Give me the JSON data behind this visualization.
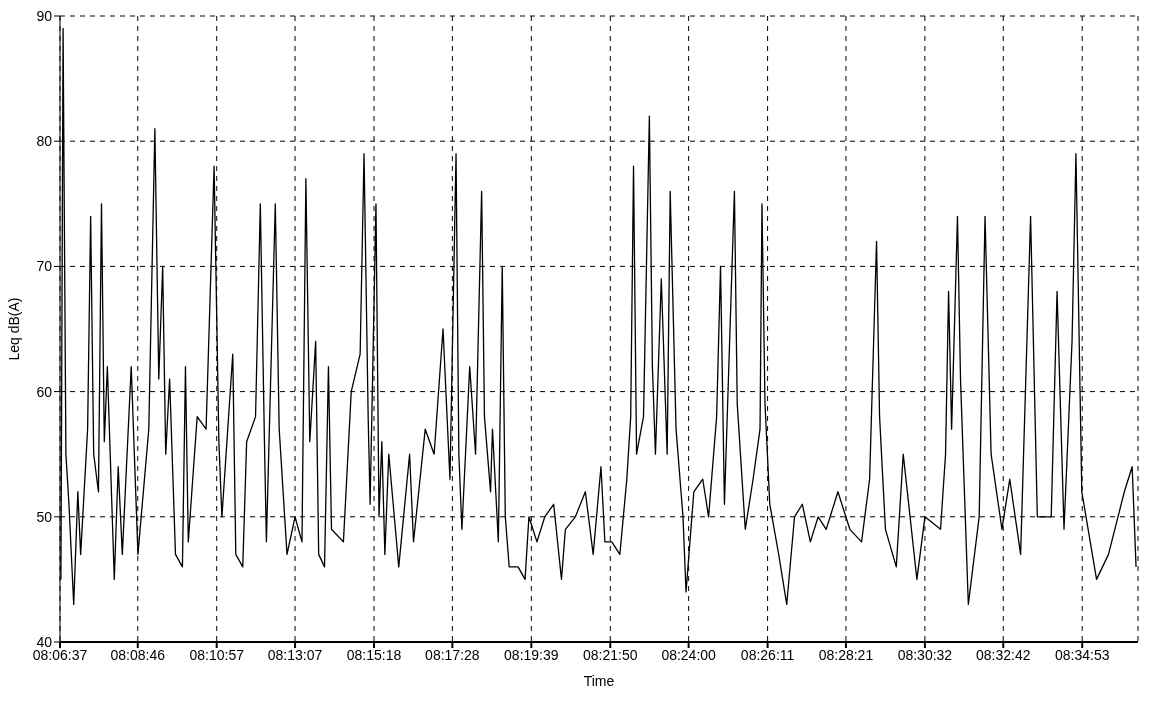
{
  "chart_data": {
    "type": "line",
    "xlabel": "Time",
    "ylabel": "Leq dB(A)",
    "xlim": [
      8.110278,
      8.6071
    ],
    "ylim": [
      40,
      90
    ],
    "xticks": [
      {
        "value": 8.110278,
        "label": "08:06:37"
      },
      {
        "value": 8.146111,
        "label": "08:08:46"
      },
      {
        "value": 8.1825,
        "label": "08:10:57"
      },
      {
        "value": 8.218611,
        "label": "08:13:07"
      },
      {
        "value": 8.255,
        "label": "08:15:18"
      },
      {
        "value": 8.291111,
        "label": "08:17:28"
      },
      {
        "value": 8.3275,
        "label": "08:19:39"
      },
      {
        "value": 8.363889,
        "label": "08:21:50"
      },
      {
        "value": 8.4,
        "label": "08:24:00"
      },
      {
        "value": 8.436389,
        "label": "08:26:11"
      },
      {
        "value": 8.4725,
        "label": "08:28:21"
      },
      {
        "value": 8.508889,
        "label": "08:30:32"
      },
      {
        "value": 8.545,
        "label": "08:32:42"
      },
      {
        "value": 8.581389,
        "label": "08:34:53"
      }
    ],
    "yticks": [
      40,
      50,
      60,
      70,
      80,
      90
    ],
    "grid": true,
    "marker": "none",
    "line_style": "solid",
    "series": [
      {
        "color": "#000000",
        "x": [
          8.1107,
          8.1117,
          8.113,
          8.1144,
          8.1166,
          8.1185,
          8.1198,
          8.123,
          8.1244,
          8.1258,
          8.128,
          8.1294,
          8.1307,
          8.1321,
          8.1353,
          8.1371,
          8.139,
          8.1431,
          8.1462,
          8.1512,
          8.154,
          8.1558,
          8.1576,
          8.159,
          8.1608,
          8.1635,
          8.1667,
          8.1681,
          8.1694,
          8.1735,
          8.1776,
          8.1813,
          8.1835,
          8.1849,
          8.1899,
          8.1913,
          8.1945,
          8.1963,
          8.2004,
          8.2026,
          8.2045,
          8.2054,
          8.2095,
          8.2113,
          8.2149,
          8.2186,
          8.2218,
          8.2236,
          8.2254,
          8.2281,
          8.2295,
          8.2322,
          8.234,
          8.2354,
          8.2409,
          8.2445,
          8.2486,
          8.2504,
          8.2523,
          8.2532,
          8.2559,
          8.2573,
          8.2586,
          8.26,
          8.2618,
          8.2664,
          8.2714,
          8.2732,
          8.2786,
          8.2827,
          8.2868,
          8.29,
          8.2928,
          8.2941,
          8.2955,
          8.2991,
          8.3018,
          8.3046,
          8.3059,
          8.3087,
          8.3096,
          8.3123,
          8.3141,
          8.3155,
          8.3173,
          8.3214,
          8.3246,
          8.3264,
          8.3301,
          8.3337,
          8.3378,
          8.3414,
          8.3432,
          8.3478,
          8.3524,
          8.356,
          8.3596,
          8.3614,
          8.3646,
          8.3683,
          8.3715,
          8.3733,
          8.3746,
          8.376,
          8.3792,
          8.3819,
          8.3833,
          8.3847,
          8.3874,
          8.3901,
          8.3915,
          8.3942,
          8.3974,
          8.3988,
          8.4024,
          8.4065,
          8.4092,
          8.4129,
          8.4147,
          8.4165,
          8.4211,
          8.4224,
          8.4261,
          8.4297,
          8.4329,
          8.4338,
          8.4352,
          8.4374,
          8.4415,
          8.4452,
          8.4488,
          8.4524,
          8.4561,
          8.4597,
          8.4634,
          8.4688,
          8.4743,
          8.4797,
          8.4834,
          8.4866,
          8.488,
          8.4907,
          8.4957,
          8.4989,
          8.5052,
          8.5089,
          8.5161,
          8.5184,
          8.5198,
          8.5212,
          8.5239,
          8.5253,
          8.5289,
          8.5339,
          8.5366,
          8.5394,
          8.5444,
          8.548,
          8.553,
          8.5576,
          8.5607,
          8.5671,
          8.5698,
          8.573,
          8.5767,
          8.5785,
          8.5812,
          8.588,
          8.5935,
          8.6008,
          8.6044,
          8.6062
        ],
        "values": [
          45,
          89,
          55,
          51,
          43,
          52,
          47,
          57,
          74,
          55,
          52,
          75,
          56,
          62,
          45,
          54,
          47,
          62,
          47,
          57,
          81,
          61,
          70,
          55,
          61,
          47,
          46,
          62,
          48,
          58,
          57,
          78,
          56,
          50,
          63,
          47,
          46,
          56,
          58,
          75,
          56,
          48,
          75,
          57,
          47,
          50,
          48,
          77,
          56,
          64,
          47,
          46,
          62,
          49,
          48,
          60,
          63,
          79,
          58,
          51,
          75,
          50,
          56,
          47,
          55,
          46,
          55,
          48,
          57,
          55,
          65,
          53,
          79,
          55,
          49,
          62,
          55,
          76,
          58,
          52,
          57,
          48,
          70,
          50,
          46,
          46,
          45,
          50,
          48,
          50,
          51,
          45,
          49,
          50,
          52,
          47,
          54,
          48,
          48,
          47,
          53,
          58,
          78,
          55,
          58,
          82,
          62,
          55,
          69,
          55,
          76,
          57,
          50,
          44,
          52,
          53,
          50,
          58,
          70,
          51,
          76,
          59,
          49,
          53,
          57,
          75,
          59,
          51,
          47,
          43,
          50,
          51,
          48,
          50,
          49,
          52,
          49,
          48,
          53,
          72,
          58,
          49,
          46,
          55,
          45,
          50,
          49,
          55,
          68,
          57,
          74,
          61,
          43,
          50,
          74,
          55,
          49,
          53,
          47,
          74,
          50,
          50,
          68,
          49,
          64,
          79,
          52,
          45,
          47,
          52,
          54,
          46
        ]
      }
    ]
  }
}
